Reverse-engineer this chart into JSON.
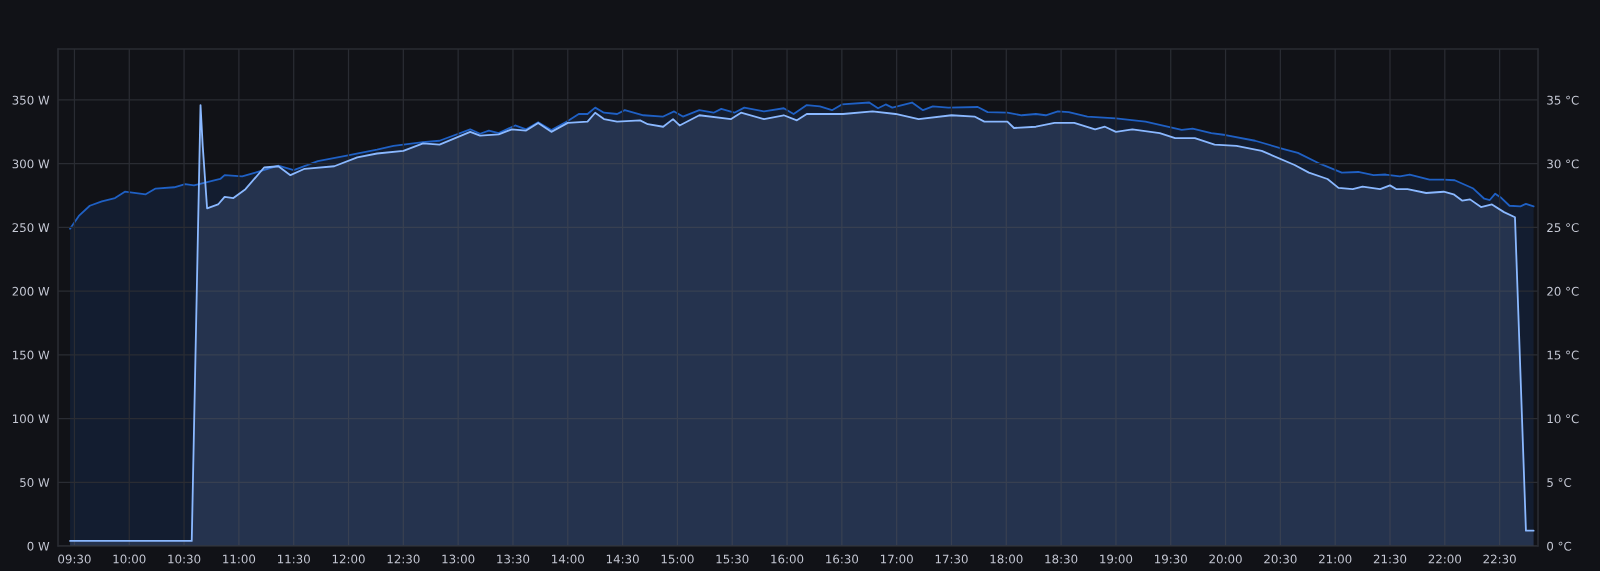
{
  "chart_data": {
    "type": "area",
    "grid": true,
    "xlim": [
      9.35,
      22.85
    ],
    "ylim": [
      0,
      390
    ],
    "y2lim": [
      0,
      39
    ],
    "xticks": [
      {
        "value": 9.5,
        "label": "09:30"
      },
      {
        "value": 10,
        "label": "10:00"
      },
      {
        "value": 10.5,
        "label": "10:30"
      },
      {
        "value": 11,
        "label": "11:00"
      },
      {
        "value": 11.5,
        "label": "11:30"
      },
      {
        "value": 12,
        "label": "12:00"
      },
      {
        "value": 12.5,
        "label": "12:30"
      },
      {
        "value": 13,
        "label": "13:00"
      },
      {
        "value": 13.5,
        "label": "13:30"
      },
      {
        "value": 14,
        "label": "14:00"
      },
      {
        "value": 14.5,
        "label": "14:30"
      },
      {
        "value": 15,
        "label": "15:00"
      },
      {
        "value": 15.5,
        "label": "15:30"
      },
      {
        "value": 16,
        "label": "16:00"
      },
      {
        "value": 16.5,
        "label": "16:30"
      },
      {
        "value": 17,
        "label": "17:00"
      },
      {
        "value": 17.5,
        "label": "17:30"
      },
      {
        "value": 18,
        "label": "18:00"
      },
      {
        "value": 18.5,
        "label": "18:30"
      },
      {
        "value": 19,
        "label": "19:00"
      },
      {
        "value": 19.5,
        "label": "19:30"
      },
      {
        "value": 20,
        "label": "20:00"
      },
      {
        "value": 20.5,
        "label": "20:30"
      },
      {
        "value": 21,
        "label": "21:00"
      },
      {
        "value": 21.5,
        "label": "21:30"
      },
      {
        "value": 22,
        "label": "22:00"
      },
      {
        "value": 22.5,
        "label": "22:30"
      }
    ],
    "yticks": [
      {
        "value": 0,
        "label": "0 W"
      },
      {
        "value": 50,
        "label": "50 W"
      },
      {
        "value": 100,
        "label": "100 W"
      },
      {
        "value": 150,
        "label": "150 W"
      },
      {
        "value": 200,
        "label": "200 W"
      },
      {
        "value": 250,
        "label": "250 W"
      },
      {
        "value": 300,
        "label": "300 W"
      },
      {
        "value": 350,
        "label": "350 W"
      }
    ],
    "y2ticks": [
      {
        "value": 0,
        "label": "0 °C"
      },
      {
        "value": 5,
        "label": "5 °C"
      },
      {
        "value": 10,
        "label": "10 °C"
      },
      {
        "value": 15,
        "label": "15 °C"
      },
      {
        "value": 20,
        "label": "20 °C"
      },
      {
        "value": 25,
        "label": "25 °C"
      },
      {
        "value": 30,
        "label": "30 °C"
      },
      {
        "value": 35,
        "label": "35 °C"
      }
    ],
    "series": [
      {
        "color": "#1f60c4",
        "axis": "y2",
        "x": [
          9.46,
          9.54,
          9.64,
          9.75,
          9.87,
          9.96,
          10.15,
          10.24,
          10.41,
          10.51,
          10.59,
          10.83,
          10.87,
          11.03,
          11.15,
          11.36,
          11.5,
          11.72,
          11.96,
          12.26,
          12.41,
          12.68,
          12.83,
          13.11,
          13.2,
          13.28,
          13.37,
          13.52,
          13.62,
          13.73,
          13.85,
          14.0,
          14.1,
          14.18,
          14.25,
          14.33,
          14.45,
          14.52,
          14.69,
          14.87,
          14.97,
          15.05,
          15.2,
          15.33,
          15.4,
          15.52,
          15.61,
          15.79,
          15.97,
          16.06,
          16.18,
          16.3,
          16.41,
          16.5,
          16.75,
          16.83,
          16.9,
          16.96,
          17.14,
          17.24,
          17.33,
          17.47,
          17.74,
          17.83,
          18.01,
          18.14,
          18.27,
          18.36,
          18.47,
          18.57,
          18.74,
          19.0,
          19.27,
          19.47,
          19.6,
          19.7,
          19.87,
          20.0,
          20.27,
          20.53,
          20.66,
          20.86,
          21.06,
          21.21,
          21.35,
          21.46,
          21.59,
          21.68,
          21.86,
          21.99,
          22.09,
          22.26,
          22.36,
          22.41,
          22.46,
          22.51,
          22.59,
          22.69,
          22.74,
          22.81
        ],
        "values": [
          24.9,
          25.9,
          26.7,
          27.05,
          27.3,
          27.8,
          27.6,
          28.05,
          28.15,
          28.4,
          28.3,
          28.8,
          29.1,
          29.0,
          29.3,
          29.85,
          29.5,
          30.2,
          30.6,
          31.1,
          31.4,
          31.7,
          31.8,
          32.7,
          32.35,
          32.6,
          32.4,
          33.0,
          32.7,
          33.25,
          32.65,
          33.35,
          33.9,
          33.9,
          34.4,
          34.0,
          33.9,
          34.2,
          33.8,
          33.7,
          34.1,
          33.7,
          34.2,
          34.0,
          34.3,
          34.0,
          34.4,
          34.1,
          34.35,
          33.9,
          34.6,
          34.5,
          34.2,
          34.65,
          34.8,
          34.35,
          34.65,
          34.4,
          34.8,
          34.2,
          34.5,
          34.4,
          34.45,
          34.05,
          34.0,
          33.8,
          33.9,
          33.8,
          34.1,
          34.05,
          33.7,
          33.55,
          33.3,
          32.9,
          32.65,
          32.75,
          32.4,
          32.25,
          31.8,
          31.15,
          30.85,
          30.0,
          29.3,
          29.35,
          29.1,
          29.15,
          29.0,
          29.15,
          28.75,
          28.75,
          28.7,
          28.05,
          27.25,
          27.15,
          27.65,
          27.35,
          26.7,
          26.65,
          26.85,
          26.65
        ]
      },
      {
        "color": "#8ab8ff",
        "x": [
          9.46,
          10.57,
          10.65,
          10.67,
          10.71,
          10.81,
          10.87,
          10.95,
          11.06,
          11.23,
          11.36,
          11.47,
          11.6,
          11.87,
          12.08,
          12.26,
          12.5,
          12.68,
          12.83,
          13.11,
          13.2,
          13.37,
          13.49,
          13.62,
          13.73,
          13.85,
          14.0,
          14.18,
          14.25,
          14.33,
          14.45,
          14.66,
          14.73,
          14.87,
          14.96,
          15.02,
          15.2,
          15.49,
          15.58,
          15.79,
          15.97,
          16.09,
          16.18,
          16.51,
          16.78,
          16.99,
          17.2,
          17.5,
          17.71,
          17.8,
          18.01,
          18.07,
          18.27,
          18.44,
          18.62,
          18.81,
          18.9,
          19.0,
          19.15,
          19.4,
          19.54,
          19.72,
          19.9,
          20.1,
          20.33,
          20.63,
          20.76,
          20.93,
          21.03,
          21.16,
          21.25,
          21.41,
          21.5,
          21.56,
          21.66,
          21.83,
          21.99,
          22.08,
          22.16,
          22.23,
          22.33,
          22.43,
          22.54,
          22.64,
          22.74,
          22.81
        ],
        "values": [
          4,
          4,
          346,
          314,
          265,
          268,
          274,
          273,
          280,
          297,
          298,
          291,
          296,
          298,
          305,
          308,
          310,
          316,
          315,
          325,
          322,
          323,
          327,
          326,
          332,
          325,
          332,
          333,
          340,
          335,
          333,
          334,
          331,
          329,
          335,
          330,
          338,
          335,
          340,
          335,
          338,
          334,
          339,
          339,
          341,
          339,
          335,
          338,
          337,
          333,
          333,
          328,
          329,
          332,
          332,
          327,
          329,
          325,
          327,
          324,
          320,
          320,
          315,
          314,
          310,
          299,
          293,
          288,
          281,
          280,
          282,
          280,
          283,
          280,
          280,
          277,
          278,
          276,
          271,
          272,
          266,
          268,
          262,
          258,
          12,
          12
        ]
      }
    ]
  }
}
